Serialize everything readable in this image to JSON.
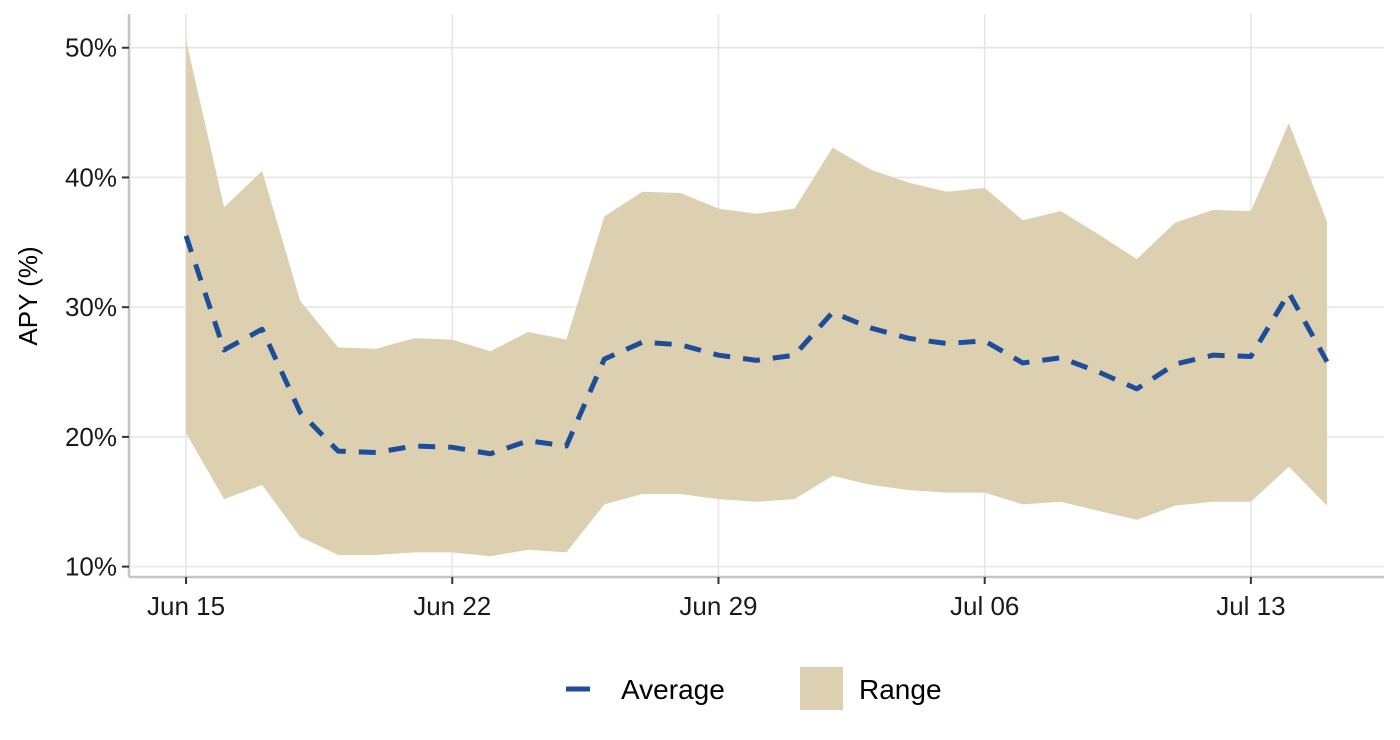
{
  "chart_data": {
    "type": "area",
    "title": "",
    "xlabel": "",
    "ylabel": "APY (%)",
    "x_type": "date",
    "x": [
      "2025-06-15",
      "2025-06-16",
      "2025-06-17",
      "2025-06-18",
      "2025-06-19",
      "2025-06-20",
      "2025-06-21",
      "2025-06-22",
      "2025-06-23",
      "2025-06-24",
      "2025-06-25",
      "2025-06-26",
      "2025-06-27",
      "2025-06-28",
      "2025-06-29",
      "2025-06-30",
      "2025-07-01",
      "2025-07-02",
      "2025-07-03",
      "2025-07-04",
      "2025-07-05",
      "2025-07-06",
      "2025-07-07",
      "2025-07-08",
      "2025-07-09",
      "2025-07-10",
      "2025-07-11",
      "2025-07-12",
      "2025-07-13",
      "2025-07-14",
      "2025-07-15"
    ],
    "series": [
      {
        "name": "Average",
        "mark": "dashed-line",
        "color": "#1f4e99",
        "values": [
          35.5,
          26.7,
          28.3,
          21.9,
          18.9,
          18.8,
          19.3,
          19.2,
          18.7,
          19.7,
          19.3,
          26.0,
          27.3,
          27.1,
          26.3,
          25.9,
          26.3,
          29.6,
          28.4,
          27.6,
          27.2,
          27.4,
          25.7,
          26.1,
          25.0,
          23.7,
          25.6,
          26.3,
          26.2,
          31.1,
          25.8
        ]
      },
      {
        "name": "Range",
        "mark": "ribbon",
        "color": "#ddd0b0",
        "lower": [
          20.3,
          15.2,
          16.3,
          12.3,
          10.9,
          10.9,
          11.1,
          11.1,
          10.8,
          11.3,
          11.1,
          14.8,
          15.6,
          15.6,
          15.2,
          15.0,
          15.2,
          17.0,
          16.3,
          15.9,
          15.7,
          15.7,
          14.8,
          15.0,
          14.3,
          13.6,
          14.7,
          15.0,
          15.0,
          17.7,
          14.7
        ],
        "upper": [
          50.6,
          37.7,
          40.5,
          30.5,
          26.9,
          26.8,
          27.6,
          27.5,
          26.6,
          28.1,
          27.5,
          37.0,
          38.9,
          38.8,
          37.6,
          37.2,
          37.6,
          42.3,
          40.6,
          39.6,
          38.9,
          39.2,
          36.7,
          37.4,
          35.6,
          33.7,
          36.5,
          37.5,
          37.4,
          44.2,
          36.6
        ]
      }
    ],
    "ylim": [
      9.2,
      52.6
    ],
    "yticks": [
      10,
      20,
      30,
      40,
      50
    ],
    "ytick_labels": [
      "10%",
      "20%",
      "30%",
      "40%",
      "50%"
    ],
    "xticks": [
      "2025-06-15",
      "2025-06-22",
      "2025-06-29",
      "2025-07-06",
      "2025-07-13"
    ],
    "xtick_labels": [
      "Jun 15",
      "Jun 22",
      "Jun 29",
      "Jul 06",
      "Jul 13"
    ],
    "grid": true,
    "legend_position": "bottom",
    "legend": [
      {
        "label": "Average",
        "symbol": "dash"
      },
      {
        "label": "Range",
        "symbol": "fill"
      }
    ]
  }
}
